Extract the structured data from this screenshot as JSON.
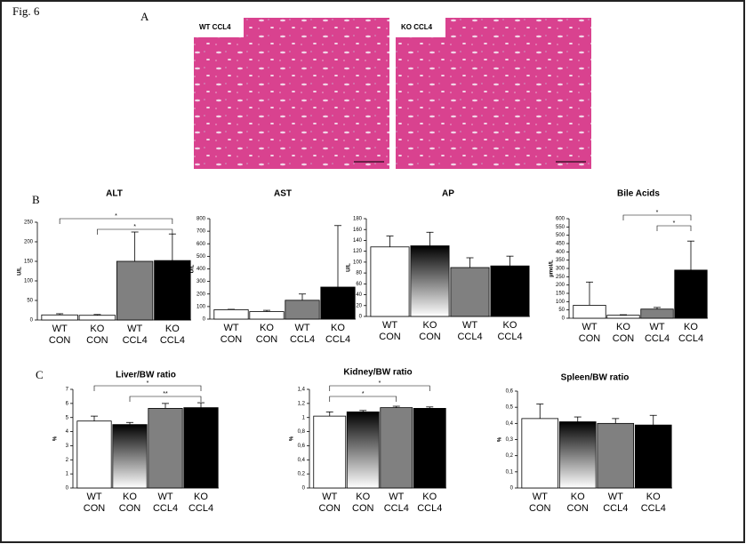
{
  "figure_label": "Fig. 6",
  "panel_labels": [
    "A",
    "B",
    "C"
  ],
  "micrographs": [
    {
      "label": "WT CCL4"
    },
    {
      "label": "KO CCL4"
    }
  ],
  "chart_data": [
    {
      "type": "bar",
      "title": "ALT",
      "ylabel": "U/L",
      "categories": [
        [
          "WT",
          "CON"
        ],
        [
          "KO",
          "CON"
        ],
        [
          "WT",
          "CCL4"
        ],
        [
          "KO",
          "CCL4"
        ]
      ],
      "values": [
        13,
        12,
        150,
        152
      ],
      "errors": [
        3,
        2,
        75,
        68
      ],
      "colors": [
        "#ffffff",
        "#ffffff",
        "#808080",
        "#000000"
      ],
      "gradient": false,
      "ylim": [
        0,
        250
      ],
      "yticks": [
        0,
        50,
        100,
        150,
        200,
        250
      ],
      "brackets": [
        {
          "from": 0,
          "to": 3,
          "label": "*"
        },
        {
          "from": 1,
          "to": 3,
          "label": "*"
        }
      ]
    },
    {
      "type": "bar",
      "title": "AST",
      "ylabel": "U/L",
      "categories": [
        [
          "WT",
          "CON"
        ],
        [
          "KO",
          "CON"
        ],
        [
          "WT",
          "CCL4"
        ],
        [
          "KO",
          "CCL4"
        ]
      ],
      "values": [
        75,
        60,
        150,
        255
      ],
      "errors": [
        3,
        10,
        50,
        490
      ],
      "colors": [
        "#ffffff",
        "#ffffff",
        "#808080",
        "#000000"
      ],
      "gradient": false,
      "ylim": [
        0,
        800
      ],
      "yticks": [
        0,
        100,
        200,
        300,
        400,
        500,
        600,
        700,
        800
      ],
      "brackets": []
    },
    {
      "type": "bar",
      "title": "AP",
      "ylabel": "U/L",
      "categories": [
        [
          "WT",
          "CON"
        ],
        [
          "KO",
          "CON"
        ],
        [
          "WT",
          "CCL4"
        ],
        [
          "KO",
          "CCL4"
        ]
      ],
      "values": [
        128,
        130,
        90,
        93
      ],
      "errors": [
        20,
        25,
        18,
        18
      ],
      "colors": [
        "#ffffff",
        "#ffffff",
        "#808080",
        "#000000"
      ],
      "gradient": true,
      "ylim": [
        0,
        180
      ],
      "yticks": [
        0,
        20,
        40,
        60,
        80,
        100,
        120,
        140,
        160,
        180
      ],
      "brackets": []
    },
    {
      "type": "bar",
      "title": "Bile Acids",
      "ylabel": "µmol/L",
      "categories": [
        [
          "WT",
          "CON"
        ],
        [
          "KO",
          "CON"
        ],
        [
          "WT",
          "CCL4"
        ],
        [
          "KO",
          "CCL4"
        ]
      ],
      "values": [
        78,
        18,
        55,
        290
      ],
      "errors": [
        140,
        3,
        10,
        175
      ],
      "colors": [
        "#ffffff",
        "#ffffff",
        "#808080",
        "#000000"
      ],
      "gradient": false,
      "ylim": [
        0,
        600
      ],
      "yticks": [
        0,
        50,
        100,
        150,
        200,
        250,
        300,
        350,
        400,
        450,
        500,
        550,
        600
      ],
      "brackets": [
        {
          "from": 1,
          "to": 3,
          "label": "*"
        },
        {
          "from": 2,
          "to": 3,
          "label": "*"
        }
      ]
    },
    {
      "type": "bar",
      "title": "Liver/BW ratio",
      "ylabel": "%",
      "categories": [
        [
          "WT",
          "CON"
        ],
        [
          "KO",
          "CON"
        ],
        [
          "WT",
          "CCL4"
        ],
        [
          "KO",
          "CCL4"
        ]
      ],
      "values": [
        4.75,
        4.5,
        5.65,
        5.7
      ],
      "errors": [
        0.35,
        0.15,
        0.35,
        0.35
      ],
      "colors": [
        "#ffffff",
        "#ffffff",
        "#808080",
        "#000000"
      ],
      "gradient": true,
      "ylim": [
        0,
        7
      ],
      "yticks": [
        0,
        1,
        2,
        3,
        4,
        5,
        6,
        7
      ],
      "brackets": [
        {
          "from": 0,
          "to": 3,
          "label": "*"
        },
        {
          "from": 1,
          "to": 3,
          "label": "**"
        }
      ]
    },
    {
      "type": "bar",
      "title": "Kidney/BW ratio",
      "ylabel": "%",
      "categories": [
        [
          "WT",
          "CON"
        ],
        [
          "KO",
          "CON"
        ],
        [
          "WT",
          "CCL4"
        ],
        [
          "KO",
          "CCL4"
        ]
      ],
      "values": [
        1.02,
        1.08,
        1.14,
        1.13
      ],
      "errors": [
        0.06,
        0.02,
        0.02,
        0.02
      ],
      "colors": [
        "#ffffff",
        "#ffffff",
        "#808080",
        "#000000"
      ],
      "gradient": true,
      "ylim": [
        0,
        1.4
      ],
      "yticks": [
        0,
        {
          "value": 0.2,
          "label": "0,2"
        },
        {
          "value": 0.4,
          "label": "0,4"
        },
        {
          "value": 0.6,
          "label": "0,6"
        },
        {
          "value": 0.8,
          "label": "0,8"
        },
        1,
        {
          "value": 1.2,
          "label": "1,2"
        },
        {
          "value": 1.4,
          "label": "1,4"
        }
      ],
      "brackets": [
        {
          "from": 0,
          "to": 3,
          "label": "*"
        },
        {
          "from": 0,
          "to": 2,
          "label": "*"
        }
      ]
    },
    {
      "type": "bar",
      "title": "Spleen/BW ratio",
      "ylabel": "%",
      "categories": [
        [
          "WT",
          "CON"
        ],
        [
          "KO",
          "CON"
        ],
        [
          "WT",
          "CCL4"
        ],
        [
          "KO",
          "CCL4"
        ]
      ],
      "values": [
        0.43,
        0.41,
        0.4,
        0.39
      ],
      "errors": [
        0.09,
        0.03,
        0.03,
        0.06
      ],
      "colors": [
        "#ffffff",
        "#ffffff",
        "#808080",
        "#000000"
      ],
      "gradient": true,
      "ylim": [
        0,
        0.6
      ],
      "yticks": [
        0,
        {
          "value": 0.1,
          "label": "0,1"
        },
        {
          "value": 0.2,
          "label": "0,2"
        },
        {
          "value": 0.3,
          "label": "0,3"
        },
        {
          "value": 0.4,
          "label": "0,4"
        },
        {
          "value": 0.5,
          "label": "0,5"
        },
        {
          "value": 0.6,
          "label": "0,6"
        }
      ],
      "brackets": []
    }
  ]
}
